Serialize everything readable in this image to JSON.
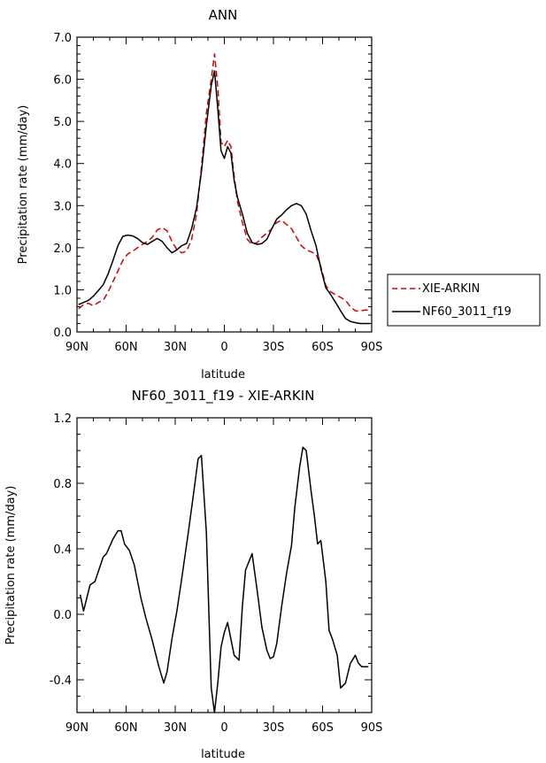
{
  "chart_data": [
    {
      "type": "line",
      "title": "ANN",
      "xlabel": "latitude",
      "ylabel": "Precipitation rate (mm/day)",
      "xlim": [
        90,
        -90
      ],
      "ylim": [
        0.0,
        7.0
      ],
      "xticks": [
        90,
        60,
        30,
        0,
        -30,
        -60,
        -90
      ],
      "xtick_labels": [
        "90N",
        "60N",
        "30N",
        "0",
        "30S",
        "60S",
        "90S"
      ],
      "yticks": [
        0,
        1,
        2,
        3,
        4,
        5,
        6,
        7
      ],
      "ytick_labels": [
        "0.0",
        "1.0",
        "2.0",
        "3.0",
        "4.0",
        "5.0",
        "6.0",
        "7.0"
      ],
      "legend_position": "right",
      "series": [
        {
          "name": "XIE-ARKIN",
          "color": "#e00000",
          "dash": "dashed",
          "x": [
            89,
            86,
            83,
            80,
            77,
            74,
            71,
            68,
            65,
            62,
            59,
            56,
            53,
            50,
            47,
            44,
            41,
            38,
            35,
            32,
            29,
            26,
            23,
            20,
            17,
            14,
            11,
            8,
            6,
            4,
            2,
            0,
            -2,
            -4,
            -6,
            -8,
            -11,
            -14,
            -17,
            -20,
            -23,
            -26,
            -29,
            -32,
            -35,
            -38,
            -41,
            -44,
            -47,
            -50,
            -53,
            -56,
            -59,
            -62,
            -65,
            -68,
            -71,
            -74,
            -77,
            -80,
            -83,
            -86,
            -89
          ],
          "values": [
            0.55,
            0.65,
            0.68,
            0.62,
            0.7,
            0.75,
            0.95,
            1.2,
            1.45,
            1.7,
            1.85,
            1.92,
            2.0,
            2.08,
            2.15,
            2.25,
            2.42,
            2.48,
            2.4,
            2.15,
            1.95,
            1.88,
            1.92,
            2.2,
            2.8,
            3.9,
            5.2,
            6.0,
            6.6,
            5.8,
            4.5,
            4.4,
            4.55,
            4.4,
            3.7,
            3.1,
            2.6,
            2.2,
            2.08,
            2.12,
            2.25,
            2.35,
            2.45,
            2.6,
            2.65,
            2.55,
            2.45,
            2.25,
            2.05,
            1.95,
            1.9,
            1.85,
            1.55,
            1.1,
            0.95,
            0.88,
            0.82,
            0.75,
            0.6,
            0.5,
            0.5,
            0.52,
            0.52
          ]
        },
        {
          "name": "NF60_3011_f19",
          "color": "#000000",
          "dash": "solid",
          "x": [
            89,
            86,
            83,
            80,
            77,
            74,
            71,
            68,
            65,
            62,
            59,
            56,
            53,
            50,
            47,
            44,
            41,
            38,
            35,
            32,
            29,
            26,
            23,
            20,
            17,
            14,
            11,
            8,
            6,
            4,
            2,
            0,
            -2,
            -4,
            -6,
            -8,
            -11,
            -14,
            -17,
            -20,
            -23,
            -26,
            -29,
            -32,
            -35,
            -38,
            -41,
            -44,
            -47,
            -50,
            -53,
            -56,
            -59,
            -62,
            -65,
            -68,
            -71,
            -74,
            -77,
            -80,
            -83,
            -86,
            -89
          ],
          "values": [
            0.65,
            0.7,
            0.75,
            0.85,
            0.98,
            1.12,
            1.38,
            1.7,
            2.05,
            2.27,
            2.3,
            2.28,
            2.22,
            2.12,
            2.08,
            2.15,
            2.22,
            2.15,
            2.0,
            1.88,
            1.95,
            2.05,
            2.1,
            2.45,
            2.95,
            3.8,
            4.9,
            5.85,
            6.2,
            5.3,
            4.3,
            4.12,
            4.4,
            4.25,
            3.6,
            3.2,
            2.8,
            2.35,
            2.12,
            2.08,
            2.1,
            2.2,
            2.45,
            2.68,
            2.78,
            2.9,
            3.0,
            3.05,
            3.0,
            2.8,
            2.4,
            2.05,
            1.5,
            1.05,
            0.88,
            0.7,
            0.5,
            0.32,
            0.25,
            0.22,
            0.2,
            0.2,
            0.2
          ]
        }
      ]
    },
    {
      "type": "line",
      "title": "NF60_3011_f19 - XIE-ARKIN",
      "xlabel": "latitude",
      "ylabel": "Precipitation rate (mm/day)",
      "xlim": [
        90,
        -90
      ],
      "ylim": [
        -0.6,
        1.2
      ],
      "xticks": [
        90,
        60,
        30,
        0,
        -30,
        -60,
        -90
      ],
      "xtick_labels": [
        "90N",
        "60N",
        "30N",
        "0",
        "30S",
        "60S",
        "90S"
      ],
      "yticks": [
        -0.4,
        0.0,
        0.4,
        0.8,
        1.2
      ],
      "ytick_labels": [
        "-0.4",
        "0.0",
        "0.4",
        "0.8",
        "1.2"
      ],
      "series": [
        {
          "name": "NF60_3011_f19 - XIE-ARKIN",
          "color": "#000000",
          "dash": "solid",
          "x": [
            88,
            86,
            82,
            79,
            74,
            72,
            68,
            65,
            63,
            61,
            58,
            55,
            51,
            48,
            44,
            40,
            37,
            35,
            32,
            29,
            26,
            22,
            19,
            16,
            14,
            11,
            8,
            6,
            4,
            2,
            0,
            -2,
            -4,
            -6,
            -9,
            -11,
            -13,
            -17,
            -20,
            -23,
            -26,
            -28,
            -30,
            -32,
            -35,
            -38,
            -41,
            -43,
            -46,
            -48,
            -50,
            -53,
            -55,
            -57,
            -59,
            -62,
            -64,
            -66,
            -69,
            -71,
            -74,
            -77,
            -80,
            -82,
            -84,
            -86,
            -88
          ],
          "values": [
            0.12,
            0.02,
            0.18,
            0.2,
            0.35,
            0.37,
            0.46,
            0.51,
            0.51,
            0.43,
            0.39,
            0.3,
            0.1,
            -0.02,
            -0.16,
            -0.32,
            -0.42,
            -0.35,
            -0.15,
            0.02,
            0.22,
            0.5,
            0.72,
            0.95,
            0.97,
            0.5,
            -0.45,
            -0.6,
            -0.42,
            -0.2,
            -0.11,
            -0.05,
            -0.15,
            -0.25,
            -0.28,
            0.05,
            0.27,
            0.37,
            0.15,
            -0.08,
            -0.22,
            -0.27,
            -0.26,
            -0.18,
            0.05,
            0.25,
            0.42,
            0.65,
            0.9,
            1.02,
            1.0,
            0.75,
            0.6,
            0.43,
            0.45,
            0.2,
            -0.1,
            -0.15,
            -0.25,
            -0.45,
            -0.42,
            -0.3,
            -0.25,
            -0.3,
            -0.32,
            -0.32,
            -0.32
          ]
        }
      ]
    }
  ]
}
